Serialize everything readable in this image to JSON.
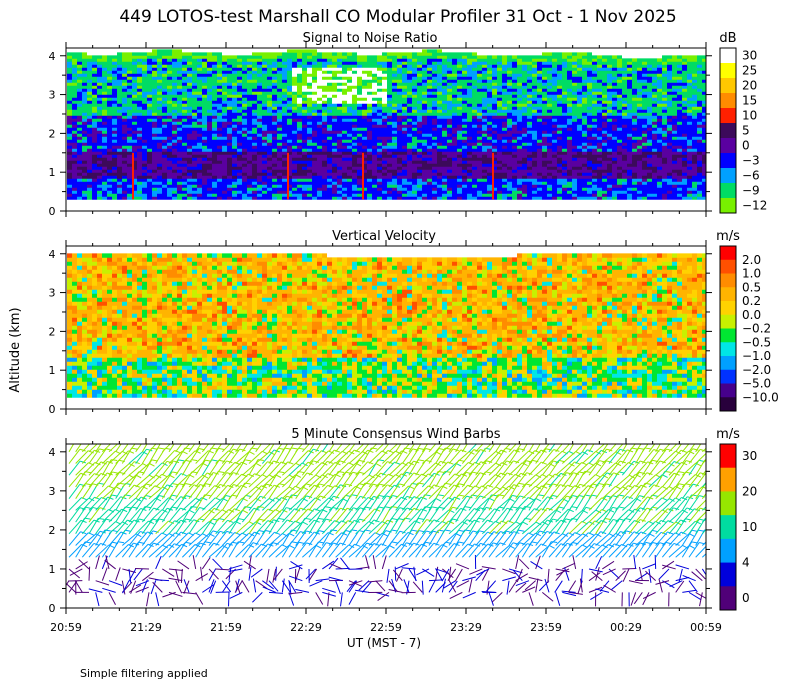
{
  "title": "449 LOTOS-test Marshall CO Modular Profiler 31 Oct -  1 Nov 2025",
  "y_axis_label": "Altitude (km)",
  "footer": "Simple filtering applied",
  "chart_data": [
    {
      "type": "heatmap",
      "title": "Signal to Noise Ratio",
      "xlabel": "UT  (MST - 7)",
      "x_ticks": [
        "20:59",
        "21:29",
        "21:59",
        "22:29",
        "22:59",
        "23:29",
        "23:59",
        "00:29",
        "00:59"
      ],
      "y_ticks": [
        0,
        1,
        2,
        3,
        4
      ],
      "ylim": [
        0,
        4.2
      ],
      "colorbar": {
        "unit": "dB",
        "labels": [
          "30",
          "25",
          "20",
          "15",
          "10",
          "5",
          "0",
          "−3",
          "−6",
          "−9",
          "−12"
        ],
        "colors": [
          "#ffffff",
          "#ffff00",
          "#ffc800",
          "#ff8c00",
          "#ff2000",
          "#3c0a5a",
          "#5a00a0",
          "#0000ff",
          "#00a0ff",
          "#00dc64",
          "#78f000"
        ]
      },
      "data_extent": {
        "y_bottom_km": 0.3,
        "y_top_km": 4.05
      },
      "bands": [
        {
          "from_km": 0.3,
          "to_km": 0.8,
          "dominant": "blue / cyan"
        },
        {
          "from_km": 0.8,
          "to_km": 1.5,
          "dominant": "purple"
        },
        {
          "from_km": 1.5,
          "to_km": 2.4,
          "dominant": "blue"
        },
        {
          "from_km": 2.4,
          "to_km": 4.05,
          "dominant": "green / cyan"
        }
      ]
    },
    {
      "type": "heatmap",
      "title": "Vertical Velocity",
      "x_ticks": [
        "20:59",
        "21:29",
        "21:59",
        "22:29",
        "22:59",
        "23:29",
        "23:59",
        "00:29",
        "00:59"
      ],
      "y_ticks": [
        0,
        1,
        2,
        3,
        4
      ],
      "ylim": [
        0,
        4.2
      ],
      "colorbar": {
        "unit": "m/s",
        "labels": [
          "2.0",
          "1.0",
          "0.5",
          "0.2",
          "0.0",
          "−0.2",
          "−0.5",
          "−1.0",
          "−2.0",
          "−5.0",
          "−10.0"
        ],
        "colors": [
          "#ff0000",
          "#ff5000",
          "#ff8c00",
          "#ffb400",
          "#ffd200",
          "#c8f000",
          "#00e632",
          "#00e6e6",
          "#00a0ff",
          "#0032ff",
          "#46008c",
          "#28003c"
        ]
      },
      "data_extent": {
        "y_bottom_km": 0.3,
        "y_top_km": 4.05
      },
      "dominant": "orange / yellow aloft, green / cyan near surface"
    },
    {
      "type": "scatter",
      "title": "5 Minute Consensus Wind Barbs",
      "x_ticks": [
        "20:59",
        "21:29",
        "21:59",
        "22:29",
        "22:59",
        "23:29",
        "23:59",
        "00:29",
        "00:59"
      ],
      "y_ticks": [
        0,
        1,
        2,
        3,
        4
      ],
      "ylim": [
        0,
        4.2
      ],
      "colorbar": {
        "unit": "m/s",
        "labels": [
          "30",
          "20",
          "10",
          "4",
          "0"
        ],
        "colors": [
          "#ff0000",
          "#ffa000",
          "#96e600",
          "#00dca0",
          "#00a0ff",
          "#0000dc",
          "#500078"
        ]
      },
      "speed_by_height": [
        {
          "from_km": 0.3,
          "to_km": 1.3,
          "speed_ms": 2
        },
        {
          "from_km": 1.3,
          "to_km": 1.8,
          "speed_ms": 5
        },
        {
          "from_km": 1.8,
          "to_km": 2.8,
          "speed_ms": 9
        },
        {
          "from_km": 2.8,
          "to_km": 4.0,
          "speed_ms": 12
        }
      ]
    }
  ]
}
